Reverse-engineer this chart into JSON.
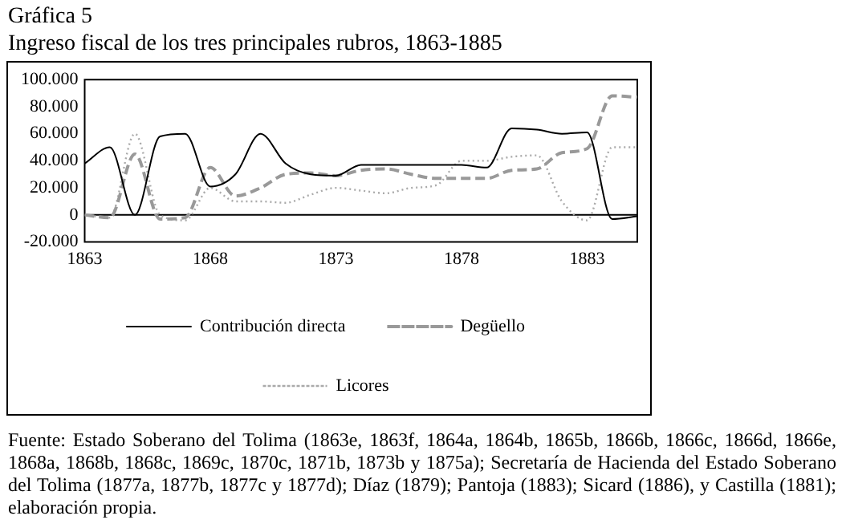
{
  "chart_data": {
    "type": "line",
    "title": "Gráfica 5",
    "subtitle": "Ingreso fiscal de los tres principales rubros, 1863-1885",
    "x": [
      1863,
      1864,
      1865,
      1866,
      1867,
      1868,
      1869,
      1870,
      1871,
      1872,
      1873,
      1874,
      1875,
      1876,
      1877,
      1878,
      1879,
      1880,
      1881,
      1882,
      1883,
      1884,
      1885
    ],
    "series": [
      {
        "name": "Contribución directa",
        "color": "#000000",
        "line_style": "solid",
        "values": [
          38000,
          50000,
          0,
          58000,
          60000,
          21000,
          30000,
          60000,
          38000,
          30000,
          29000,
          37000,
          37000,
          37000,
          37000,
          37000,
          35000,
          64000,
          63000,
          60000,
          61000,
          -3000,
          -1000
        ]
      },
      {
        "name": "Degüello",
        "color": "#999999",
        "line_style": "dashed",
        "values": [
          0,
          -2000,
          45000,
          -3000,
          -2000,
          35000,
          14000,
          20000,
          30000,
          31000,
          29000,
          33000,
          34000,
          30000,
          27000,
          27000,
          27000,
          33000,
          34000,
          46000,
          49000,
          88000,
          87000
        ]
      },
      {
        "name": "Licores",
        "color": "#aaaaaa",
        "line_style": "dotted",
        "values": [
          0,
          -2000,
          60000,
          0,
          -4000,
          20000,
          10000,
          10000,
          9000,
          15000,
          20000,
          18000,
          16000,
          20000,
          22000,
          40000,
          40000,
          43000,
          44000,
          10000,
          -4000,
          50000,
          50000
        ]
      }
    ],
    "xlim": [
      1863,
      1885
    ],
    "xticks": [
      1863,
      1868,
      1873,
      1878,
      1883
    ],
    "ylim": [
      -20000,
      100000
    ],
    "yticks": [
      {
        "value": -20000,
        "label": "-20.000"
      },
      0,
      {
        "value": 20000,
        "label": "20.000"
      },
      {
        "value": 40000,
        "label": "40.000"
      },
      {
        "value": 60000,
        "label": "60.000"
      },
      {
        "value": 80000,
        "label": "80.000"
      },
      {
        "value": 100000,
        "label": "100.000"
      }
    ],
    "ref_lines": [
      {
        "axis": "y",
        "value": 0,
        "color": "#000000"
      }
    ],
    "grid": false,
    "legend": "bottom",
    "marker": "none",
    "annotations": [
      "Fuente: Estado Soberano del Tolima (1863e, 1863f, 1864a, 1864b, 1865b, 1866b, 1866c, 1866d, 1866e, 1868a, 1868b, 1868c, 1869c, 1870c, 1871b, 1873b y 1875a); Secretaría de Hacienda del Estado Soberano del Tolima (1877a, 1877b, 1877c y 1877d); Díaz (1879); Pantoja (1883); Sicard (1886), y Castilla (1881); elaboración propia."
    ]
  }
}
